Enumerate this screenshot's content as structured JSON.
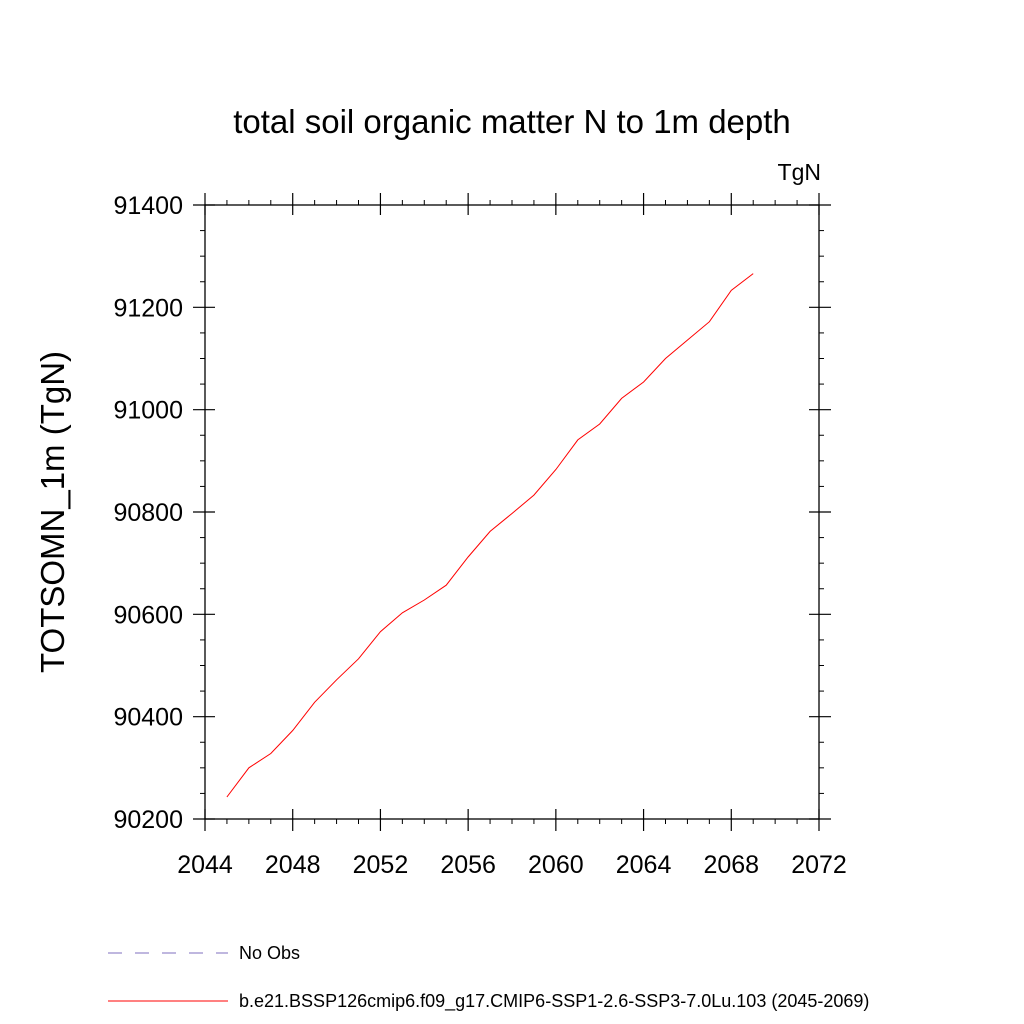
{
  "chart_data": {
    "type": "line",
    "title": "total soil organic matter N to 1m depth",
    "units_label": "TgN",
    "xlabel": "",
    "ylabel": "TOTSOMN_1m  (TgN)",
    "xlim": [
      2044,
      2072
    ],
    "ylim": [
      90200,
      91400
    ],
    "x_ticks": [
      2044,
      2048,
      2052,
      2056,
      2060,
      2064,
      2068,
      2072
    ],
    "y_ticks": [
      90200,
      90400,
      90600,
      90800,
      91000,
      91200,
      91400
    ],
    "x_tick_labels": [
      "2044",
      "2048",
      "2052",
      "2056",
      "2060",
      "2064",
      "2068",
      "2072"
    ],
    "y_tick_labels": [
      "90200",
      "90400",
      "90600",
      "90800",
      "91000",
      "91200",
      "91400"
    ],
    "grid": false,
    "legend_position": "bottom",
    "series": [
      {
        "name": "b.e21.BSSP126cmip6.f09_g17.CMIP6-SSP1-2.6-SSP3-7.0Lu.103 (2045-2069)",
        "color": "#ff0000",
        "style": "solid",
        "x": [
          2045,
          2046,
          2047,
          2048,
          2049,
          2050,
          2051,
          2052,
          2053,
          2054,
          2055,
          2056,
          2057,
          2058,
          2059,
          2060,
          2061,
          2062,
          2063,
          2064,
          2065,
          2066,
          2067,
          2068,
          2069
        ],
        "y": [
          90243,
          90300,
          90328,
          90373,
          90428,
          90472,
          90513,
          90566,
          90603,
          90628,
          90657,
          90712,
          90762,
          90797,
          90833,
          90883,
          90941,
          90972,
          91022,
          91054,
          91100,
          91136,
          91172,
          91233,
          91266
        ]
      }
    ],
    "legend": [
      {
        "label": "No Obs",
        "color": "#7f6fbf",
        "style": "dashed"
      },
      {
        "label": "b.e21.BSSP126cmip6.f09_g17.CMIP6-SSP1-2.6-SSP3-7.0Lu.103 (2045-2069)",
        "color": "#ff0000",
        "style": "solid"
      }
    ]
  }
}
